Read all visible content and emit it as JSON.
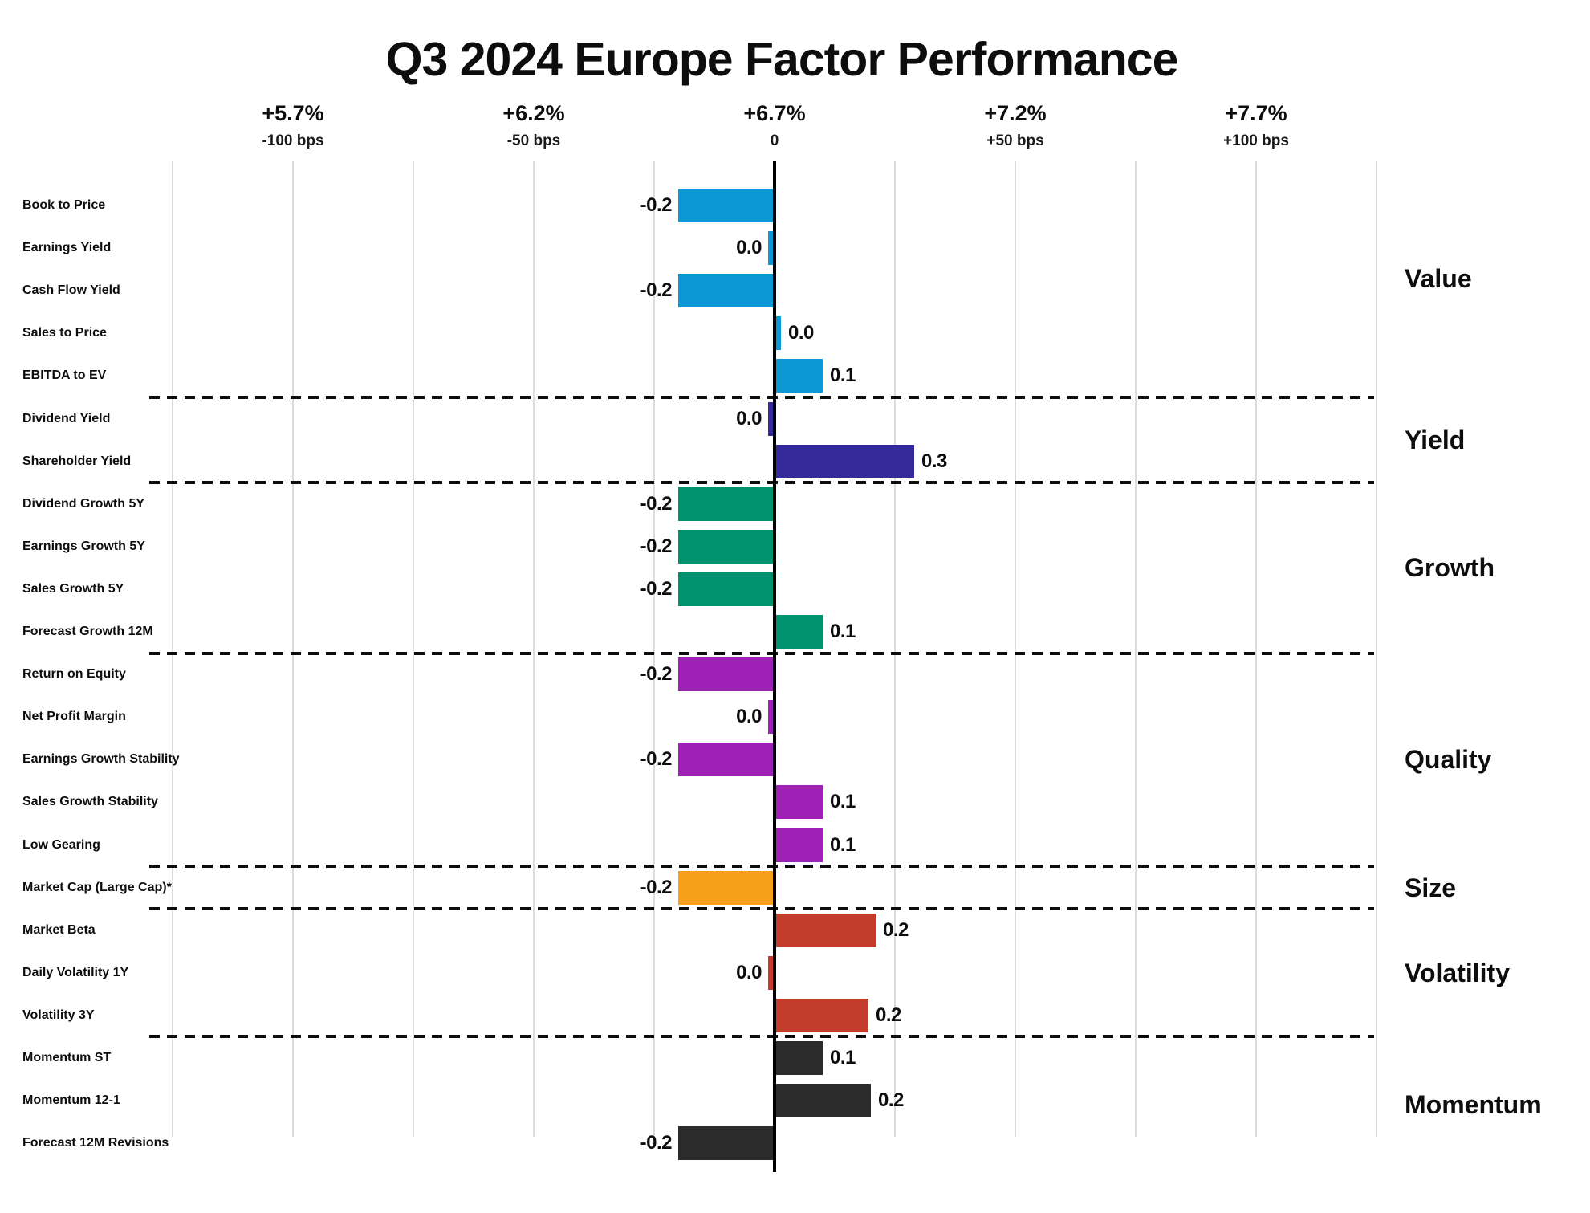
{
  "page_title": "Q3 2024 Europe Factor Performance",
  "chart_data": {
    "type": "bar",
    "orientation": "horizontal",
    "title": "Q3 2024 Europe Factor Performance",
    "legend_position": "right-group-labels",
    "grid": true,
    "x_axis": {
      "unit": "bps vs. +6.7% benchmark return",
      "range_bps": [
        -125,
        125
      ],
      "ticks": [
        {
          "pct": "+5.7%",
          "bps_label": "-100 bps",
          "bps": -100
        },
        {
          "pct": "+6.2%",
          "bps_label": "-50 bps",
          "bps": -50
        },
        {
          "pct": "+6.7%",
          "bps_label": "0",
          "bps": 0
        },
        {
          "pct": "+7.2%",
          "bps_label": "+50 bps",
          "bps": 50
        },
        {
          "pct": "+7.7%",
          "bps_label": "+100 bps",
          "bps": 100
        }
      ],
      "gridline_bps": [
        -125,
        -100,
        -75,
        -50,
        -25,
        25,
        50,
        75,
        100,
        125
      ]
    },
    "colors": {
      "value": "#0b98d4",
      "yield": "#352a9b",
      "growth": "#00916e",
      "quality": "#9e20b7",
      "size": "#f9a01b",
      "volatility": "#c23b2b",
      "momentum": "#2b2b2b",
      "gridline": "#dcdcdc",
      "axis": "#000000",
      "text": "#0d0d0d"
    },
    "groups": [
      {
        "name": "Value",
        "color": "#0b98d4",
        "rows": [
          {
            "label": "Book to Price",
            "value": "-0.2",
            "bar": -0.2
          },
          {
            "label": "Earnings Yield",
            "value": "0.0",
            "bar": -0.013
          },
          {
            "label": "Cash Flow Yield",
            "value": "-0.2",
            "bar": -0.2
          },
          {
            "label": "Sales to Price",
            "value": "0.0",
            "bar": 0.013
          },
          {
            "label": "EBITDA to EV",
            "value": "0.1",
            "bar": 0.1
          }
        ]
      },
      {
        "name": "Yield",
        "color": "#352a9b",
        "rows": [
          {
            "label": "Dividend Yield",
            "value": "0.0",
            "bar": -0.013
          },
          {
            "label": "Shareholder Yield",
            "value": "0.3",
            "bar": 0.29
          }
        ]
      },
      {
        "name": "Growth",
        "color": "#00916e",
        "rows": [
          {
            "label": "Dividend Growth 5Y",
            "value": "-0.2",
            "bar": -0.2
          },
          {
            "label": "Earnings Growth 5Y",
            "value": "-0.2",
            "bar": -0.2
          },
          {
            "label": "Sales Growth 5Y",
            "value": "-0.2",
            "bar": -0.2
          },
          {
            "label": "Forecast Growth 12M",
            "value": "0.1",
            "bar": 0.1
          }
        ]
      },
      {
        "name": "Quality",
        "color": "#9e20b7",
        "rows": [
          {
            "label": "Return on Equity",
            "value": "-0.2",
            "bar": -0.2
          },
          {
            "label": "Net Profit Margin",
            "value": "0.0",
            "bar": -0.013
          },
          {
            "label": "Earnings Growth Stability",
            "value": "-0.2",
            "bar": -0.2
          },
          {
            "label": "Sales Growth Stability",
            "value": "0.1",
            "bar": 0.1
          },
          {
            "label": "Low Gearing",
            "value": "0.1",
            "bar": 0.1
          }
        ]
      },
      {
        "name": "Size",
        "color": "#f9a01b",
        "rows": [
          {
            "label": "Market Cap (Large Cap)*",
            "value": "-0.2",
            "bar": -0.2
          }
        ]
      },
      {
        "name": "Volatility",
        "color": "#c23b2b",
        "rows": [
          {
            "label": "Market Beta",
            "value": "0.2",
            "bar": 0.21
          },
          {
            "label": "Daily Volatility 1Y",
            "value": "0.0",
            "bar": -0.013
          },
          {
            "label": "Volatility 3Y",
            "value": "0.2",
            "bar": 0.195
          }
        ]
      },
      {
        "name": "Momentum",
        "color": "#2b2b2b",
        "rows": [
          {
            "label": "Momentum ST",
            "value": "0.1",
            "bar": 0.1
          },
          {
            "label": "Momentum 12-1",
            "value": "0.2",
            "bar": 0.2
          },
          {
            "label": "Forecast 12M Revisions",
            "value": "-0.2",
            "bar": -0.2
          }
        ]
      }
    ]
  }
}
